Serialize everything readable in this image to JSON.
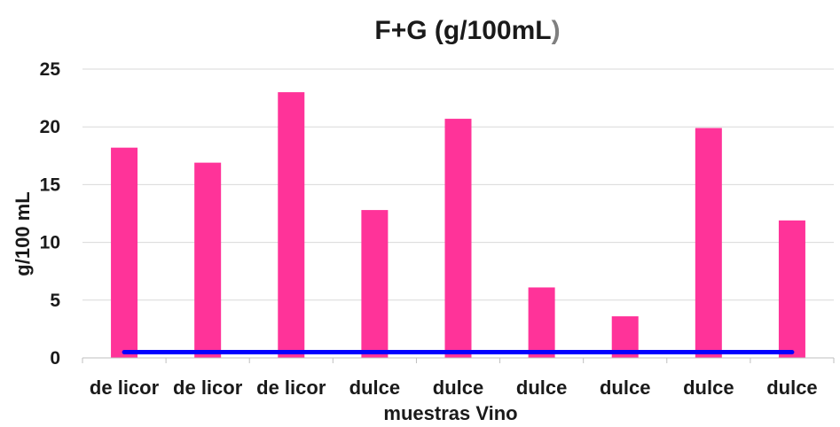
{
  "chart_data": {
    "type": "bar",
    "title": "F+G (g/100mL",
    "title_suffix": ")",
    "xlabel": "muestras Vino",
    "ylabel": "g/100 mL",
    "categories": [
      "de licor",
      "de licor",
      "de licor",
      "dulce",
      "dulce",
      "dulce",
      "dulce",
      "dulce",
      "dulce"
    ],
    "series": [
      {
        "values": [
          18.2,
          16.9,
          23.0,
          12.8,
          20.7,
          6.1,
          3.6,
          19.9,
          11.9
        ],
        "color": "#ff3399"
      },
      {
        "type": "line",
        "values": [
          0.5,
          0.5,
          0.5,
          0.5,
          0.5,
          0.5,
          0.5,
          0.5,
          0.5
        ],
        "color": "#0000ff"
      }
    ],
    "ylim": [
      0,
      25
    ],
    "yticks": [
      0,
      5,
      10,
      15,
      20,
      25
    ],
    "grid": true,
    "legend": "none"
  }
}
